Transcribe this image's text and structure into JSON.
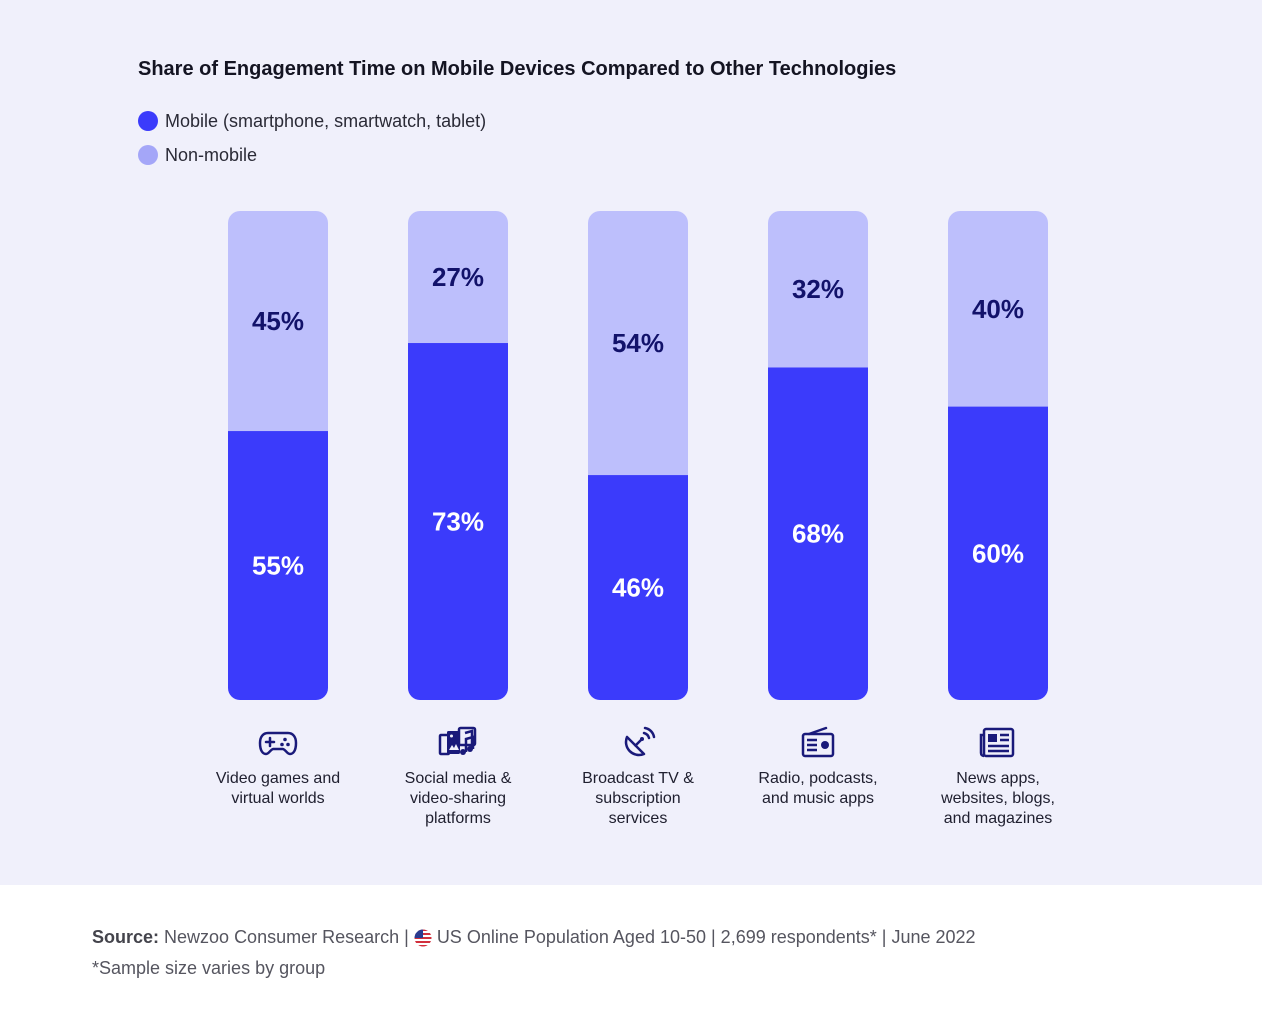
{
  "chart_data": {
    "type": "stacked-bar",
    "title": "Share of Engagement Time on Mobile Devices Compared to Other Technologies",
    "categories": [
      "Video games and\nvirtual worlds",
      "Social media &\nvideo-sharing\nplatforms",
      "Broadcast TV &\nsubscription\nservices",
      "Radio, podcasts,\nand music apps",
      "News apps,\nwebsites, blogs,\nand magazines"
    ],
    "category_icons": [
      "gamepad-icon",
      "social-media-icon",
      "satellite-dish-icon",
      "radio-icon",
      "newspaper-icon"
    ],
    "series": [
      {
        "name": "Mobile (smartphone, smartwatch, tablet)",
        "values": [
          55,
          73,
          46,
          68,
          60
        ],
        "color": "#3b3bfb"
      },
      {
        "name": "Non-mobile",
        "values": [
          45,
          27,
          54,
          32,
          40
        ],
        "color": "#bdbffc"
      }
    ],
    "value_suffix": "%",
    "ylim": [
      0,
      100
    ],
    "legend_position": "top-left",
    "grid": false
  },
  "colors": {
    "background": "#f0f0fb",
    "mobile": "#3b3bfb",
    "non_mobile": "#bdbffc",
    "mobile_legend": "#3b3bfb",
    "non_mobile_legend": "#a4a6f8",
    "label_on_light": "#12126a",
    "label_on_dark": "#ffffff",
    "icon": "#1a1a7a"
  },
  "footer": {
    "source_label": "Source:",
    "source_part1": "Newzoo Consumer Research |",
    "source_part2": "US Online Population Aged 10-50 | 2,699 respondents* | June 2022",
    "flag_icon": "us-flag-icon",
    "note": "*Sample size varies by group"
  }
}
